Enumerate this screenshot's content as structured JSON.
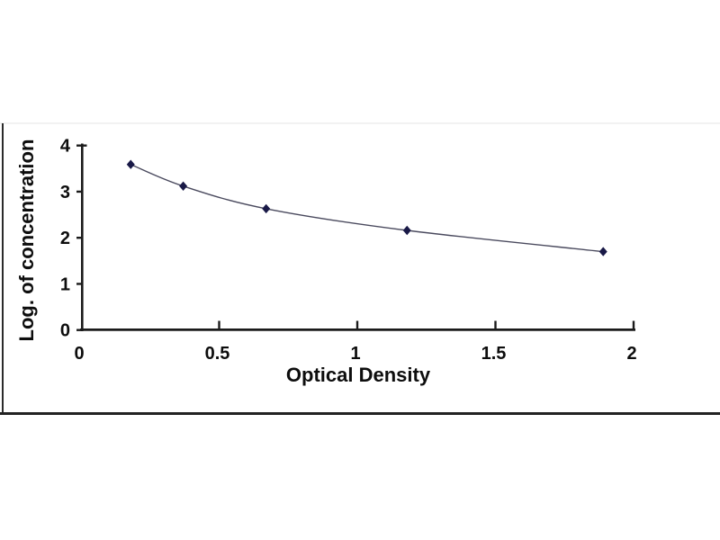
{
  "page": {
    "background": "#ffffff"
  },
  "chart_data": {
    "type": "line",
    "title": "",
    "xlabel": "Optical Density",
    "ylabel": "Log. of concentration",
    "x": [
      0.18,
      0.37,
      0.67,
      1.18,
      1.89
    ],
    "y": [
      3.59,
      3.12,
      2.63,
      2.16,
      1.7
    ],
    "xlim": [
      0,
      2
    ],
    "ylim": [
      0,
      4
    ],
    "x_tick_values": [
      0,
      0.5,
      1,
      1.5,
      2
    ],
    "x_tick_labels": [
      "0",
      "0.5",
      "1",
      "1.5",
      "2"
    ],
    "y_tick_values": [
      0,
      1,
      2,
      3,
      4
    ],
    "y_tick_labels": [
      "0",
      "1",
      "2",
      "3",
      "4"
    ],
    "grid": false,
    "legend": "none",
    "marker": "diamond",
    "colors": {
      "axis": "#1b1b1b",
      "tick_label": "#0d0d0d",
      "curve": "#4a4a5e",
      "marker": "#191947",
      "frame": "#2b2b2b",
      "faint_top_edge": "#f2f2f2"
    }
  }
}
